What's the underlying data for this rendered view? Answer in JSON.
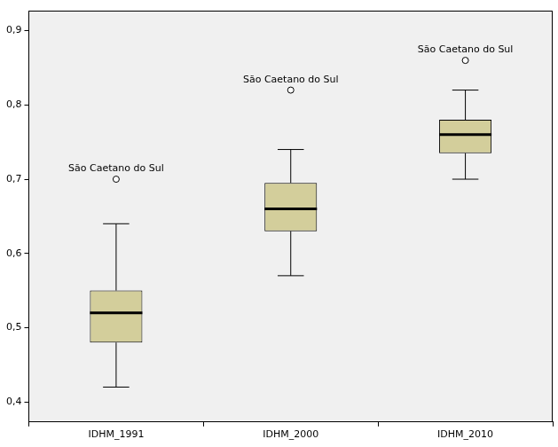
{
  "chart_data": {
    "type": "boxplot",
    "categories": [
      "IDHM_1991",
      "IDHM_2000",
      "IDHM_2010"
    ],
    "boxes": [
      {
        "min": 0.42,
        "q1": 0.48,
        "median": 0.52,
        "q3": 0.55,
        "max": 0.64,
        "outliers": [
          {
            "value": 0.7,
            "label": "São Caetano do Sul"
          }
        ]
      },
      {
        "min": 0.57,
        "q1": 0.63,
        "median": 0.66,
        "q3": 0.695,
        "max": 0.74,
        "outliers": [
          {
            "value": 0.82,
            "label": "São Caetano do Sul"
          }
        ]
      },
      {
        "min": 0.7,
        "q1": 0.735,
        "median": 0.76,
        "q3": 0.78,
        "max": 0.82,
        "outliers": [
          {
            "value": 0.86,
            "label": "São Caetano do Sul"
          }
        ]
      }
    ],
    "color": "#d3ce9b",
    "marker": "circle",
    "ylim": [
      0.373,
      0.927
    ],
    "yticks": [
      {
        "value": 0.4,
        "label": "0,4"
      },
      {
        "value": 0.5,
        "label": "0,5"
      },
      {
        "value": 0.6,
        "label": "0,6"
      },
      {
        "value": 0.7,
        "label": "0,7"
      },
      {
        "value": 0.8,
        "label": "0,8"
      },
      {
        "value": 0.9,
        "label": "0,9"
      }
    ],
    "grid": false
  }
}
